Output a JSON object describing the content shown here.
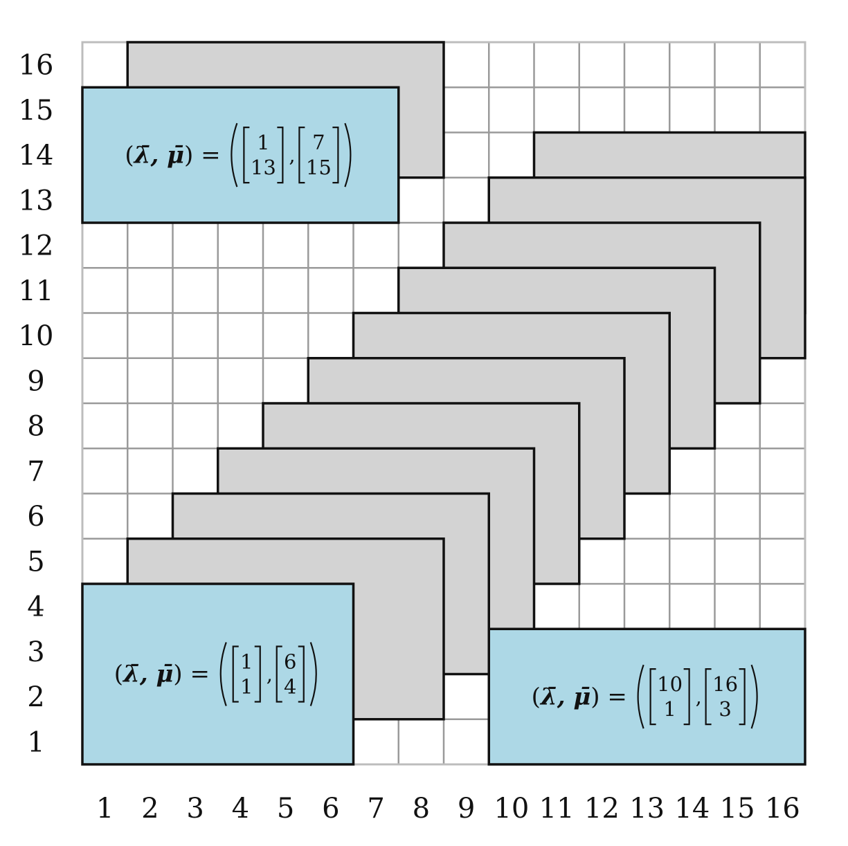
{
  "grid": {
    "n": 16,
    "x_labels": [
      "1",
      "2",
      "3",
      "4",
      "5",
      "6",
      "7",
      "8",
      "9",
      "10",
      "11",
      "12",
      "13",
      "14",
      "15",
      "16"
    ],
    "y_labels": [
      "1",
      "2",
      "3",
      "4",
      "5",
      "6",
      "7",
      "8",
      "9",
      "10",
      "11",
      "12",
      "13",
      "14",
      "15",
      "16"
    ]
  },
  "grey_blocks": [
    {
      "x": [
        2,
        8
      ],
      "y": [
        2,
        5
      ]
    },
    {
      "x": [
        3,
        9
      ],
      "y": [
        3,
        6
      ]
    },
    {
      "x": [
        4,
        10
      ],
      "y": [
        4,
        7
      ]
    },
    {
      "x": [
        5,
        11
      ],
      "y": [
        5,
        8
      ]
    },
    {
      "x": [
        6,
        12
      ],
      "y": [
        6,
        9
      ]
    },
    {
      "x": [
        7,
        13
      ],
      "y": [
        7,
        10
      ]
    },
    {
      "x": [
        8,
        14
      ],
      "y": [
        8,
        11
      ]
    },
    {
      "x": [
        9,
        15
      ],
      "y": [
        9,
        12
      ]
    },
    {
      "x": [
        10,
        16
      ],
      "y": [
        10,
        13
      ]
    },
    {
      "x": [
        11,
        16
      ],
      "y": [
        11,
        14
      ]
    },
    {
      "x": [
        2,
        8
      ],
      "y": [
        14,
        16
      ]
    }
  ],
  "blue_blocks": [
    {
      "name": "bottom-left",
      "x": [
        1,
        6
      ],
      "y": [
        1,
        4
      ],
      "label_prefix": "(λ̄, μ̄) =",
      "lambda": [
        "1",
        "1"
      ],
      "mu": [
        "6",
        "4"
      ]
    },
    {
      "name": "bottom-right",
      "x": [
        10,
        16
      ],
      "y": [
        1,
        3
      ],
      "label_prefix": "(λ̄, μ̄) =",
      "lambda": [
        "10",
        "1"
      ],
      "mu": [
        "16",
        "3"
      ]
    },
    {
      "name": "top-left",
      "x": [
        1,
        7
      ],
      "y": [
        13,
        15
      ],
      "label_prefix": "(λ̄, μ̄) =",
      "lambda": [
        "1",
        "13"
      ],
      "mu": [
        "7",
        "15"
      ]
    }
  ],
  "colors": {
    "grey_block": "#d3d3d3",
    "blue_block": "#add8e6",
    "grid": "#9a9a9a",
    "outline": "#111111"
  }
}
